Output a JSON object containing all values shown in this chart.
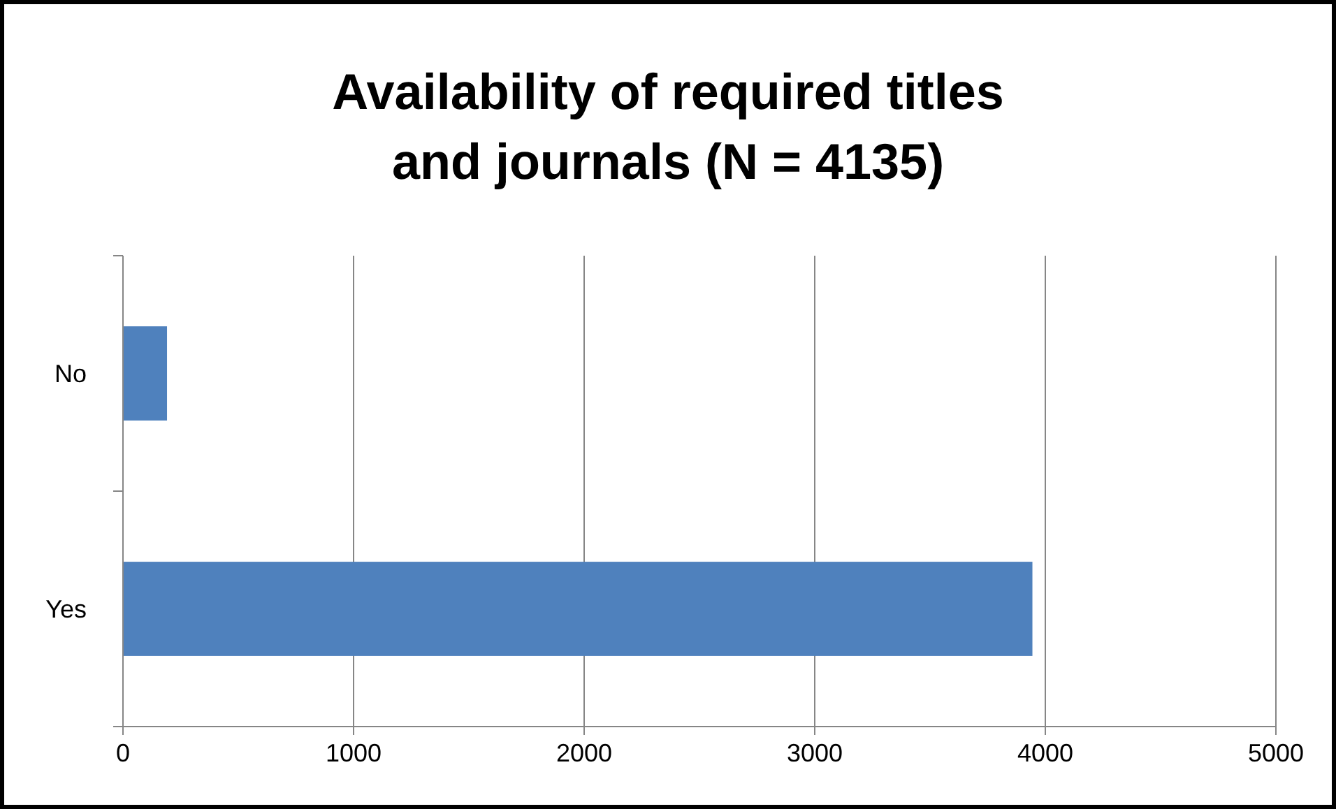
{
  "chart_data": {
    "type": "bar",
    "orientation": "horizontal",
    "title": "Availability of required titles and journals (N = 4135)",
    "categories": [
      "No",
      "Yes"
    ],
    "values": [
      191,
      3944
    ],
    "color": "#4f81bd",
    "xlim": [
      0,
      5000
    ],
    "xticks": [
      0,
      1000,
      2000,
      3000,
      4000,
      5000
    ],
    "grid": "x"
  }
}
